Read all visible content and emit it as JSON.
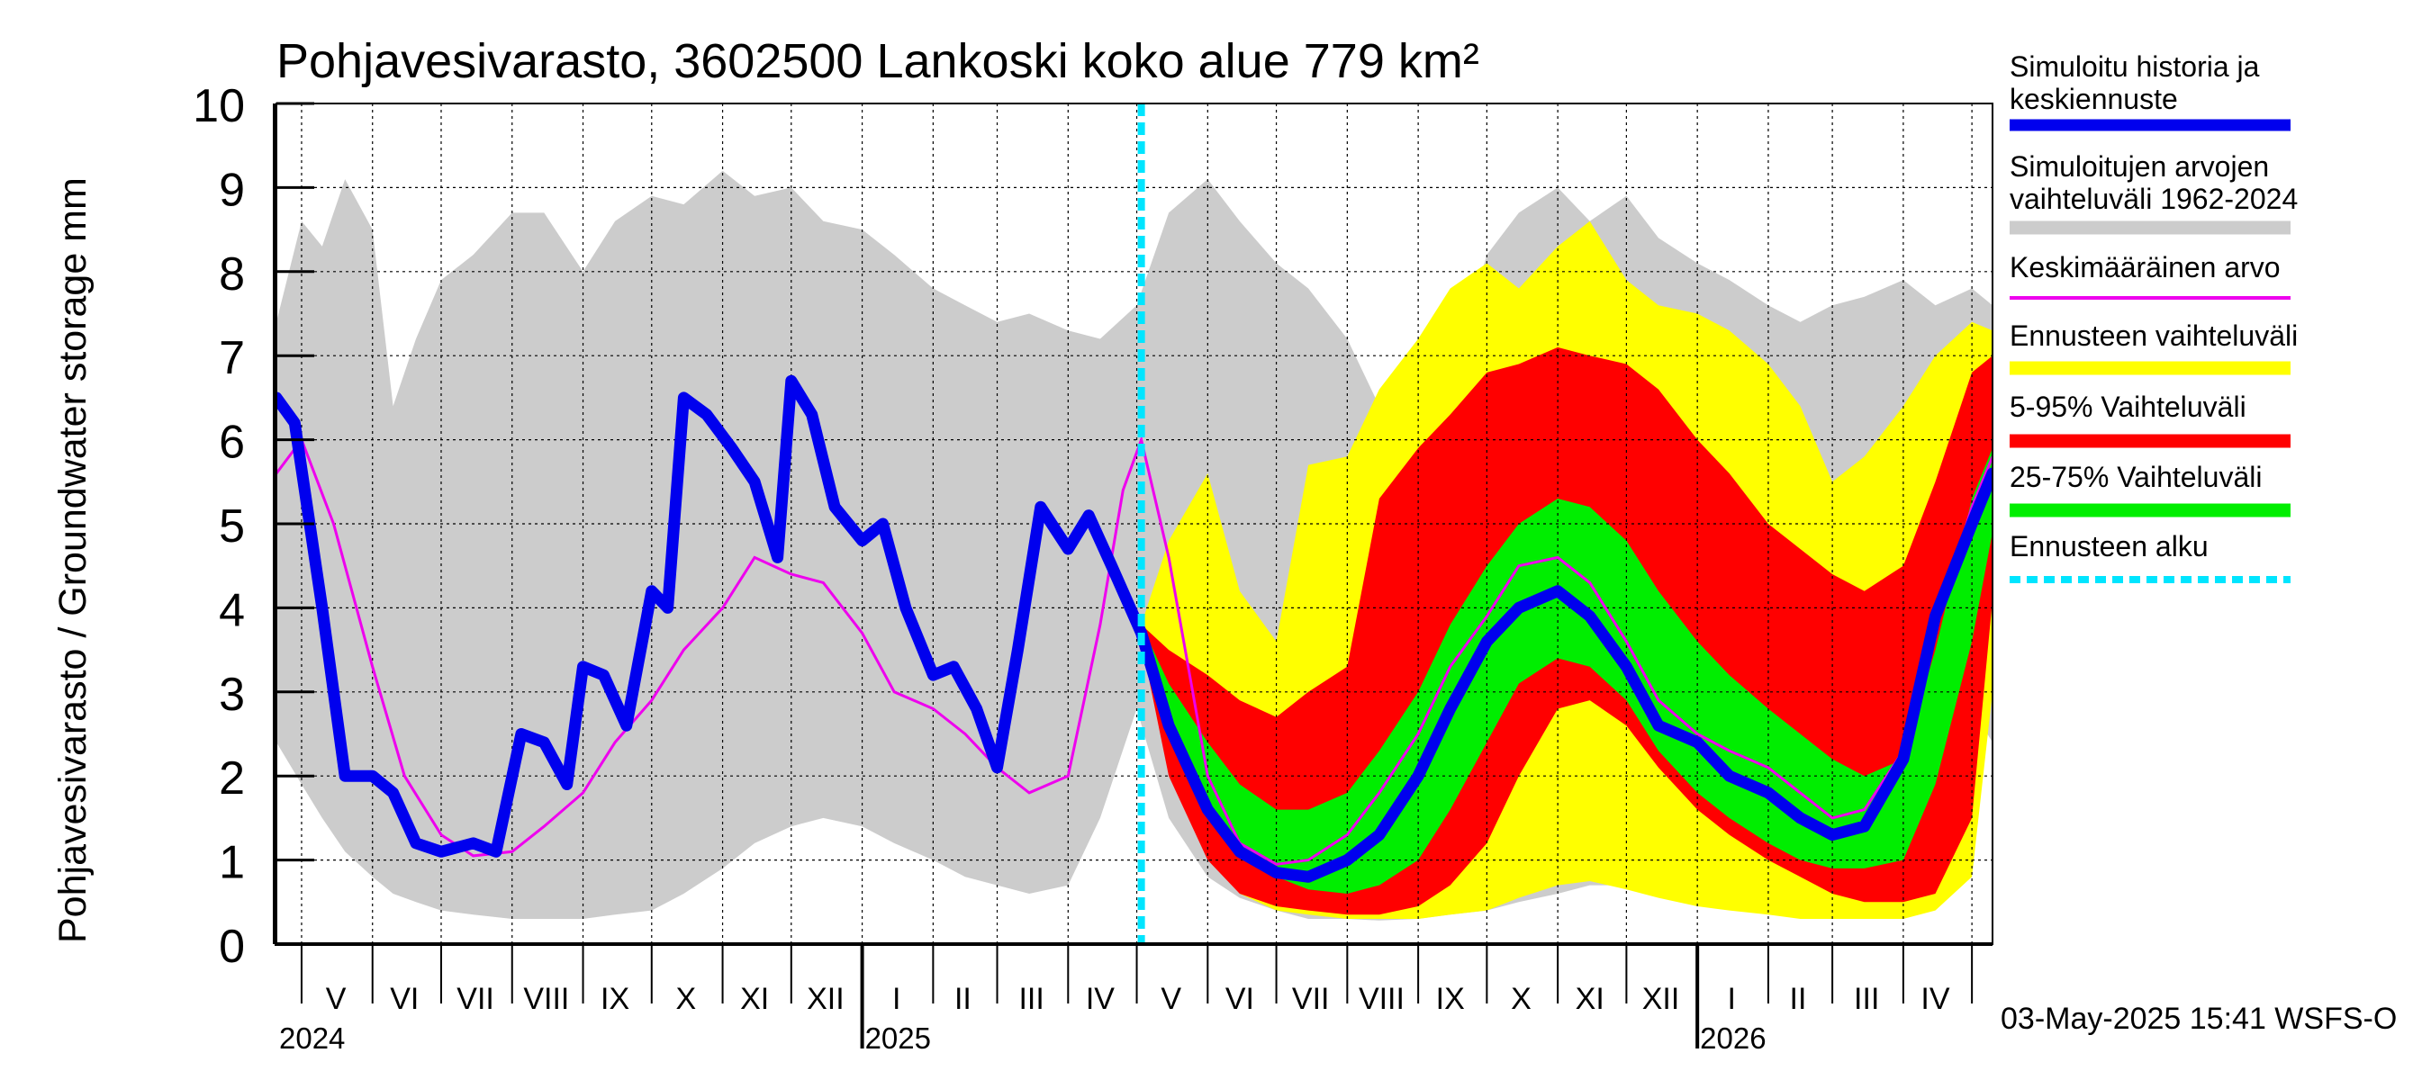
{
  "chart_data": {
    "type": "area",
    "title": "Pohjavesivarasto, 3602500 Lankoski koko alue 779 km²",
    "ylabel": "Pohjavesivarasto / Groundwater storage   mm",
    "ylim": [
      0,
      10
    ],
    "y_ticks": [
      "0",
      "1",
      "2",
      "3",
      "4",
      "5",
      "6",
      "7",
      "8",
      "9",
      "10"
    ],
    "x_range": [
      "2024-04-20",
      "2026-05-10"
    ],
    "grid": true,
    "legend_position": "right",
    "month_labels": [
      {
        "label": "V",
        "date": "2024-05-16"
      },
      {
        "label": "VI",
        "date": "2024-06-15"
      },
      {
        "label": "VII",
        "date": "2024-07-16"
      },
      {
        "label": "VIII",
        "date": "2024-08-16"
      },
      {
        "label": "IX",
        "date": "2024-09-15"
      },
      {
        "label": "X",
        "date": "2024-10-16"
      },
      {
        "label": "XI",
        "date": "2024-11-15"
      },
      {
        "label": "XII",
        "date": "2024-12-16"
      },
      {
        "label": "I",
        "date": "2025-01-16"
      },
      {
        "label": "II",
        "date": "2025-02-14"
      },
      {
        "label": "III",
        "date": "2025-03-16"
      },
      {
        "label": "IV",
        "date": "2025-04-15"
      },
      {
        "label": "V",
        "date": "2025-05-16"
      },
      {
        "label": "VI",
        "date": "2025-06-15"
      },
      {
        "label": "VII",
        "date": "2025-07-16"
      },
      {
        "label": "VIII",
        "date": "2025-08-16"
      },
      {
        "label": "IX",
        "date": "2025-09-15"
      },
      {
        "label": "X",
        "date": "2025-10-16"
      },
      {
        "label": "XI",
        "date": "2025-11-15"
      },
      {
        "label": "XII",
        "date": "2025-12-16"
      },
      {
        "label": "I",
        "date": "2026-01-16"
      },
      {
        "label": "II",
        "date": "2026-02-14"
      },
      {
        "label": "III",
        "date": "2026-03-16"
      },
      {
        "label": "IV",
        "date": "2026-04-15"
      }
    ],
    "year_labels": [
      {
        "label": "2024",
        "date": "2024-04-20"
      },
      {
        "label": "2025",
        "date": "2025-01-01"
      },
      {
        "label": "2026",
        "date": "2026-01-01"
      }
    ],
    "forecast_start": "2025-05-03",
    "footer": "03-May-2025 15:41 WSFS-O",
    "legend": [
      {
        "label": "Simuloitu historia ja keskiennuste",
        "color": "#0000ee",
        "style": "line-thick"
      },
      {
        "label": "Simuloitujen arvojen vaihteluväli 1962-2024",
        "color": "#cccccc",
        "style": "band"
      },
      {
        "label": "Keskimääräinen arvo",
        "color": "#ee00ee",
        "style": "line-thin"
      },
      {
        "label": "Ennusteen vaihteluväli",
        "color": "#ffff00",
        "style": "band"
      },
      {
        "label": "5-95% Vaihteluväli",
        "color": "#ff0000",
        "style": "band"
      },
      {
        "label": "25-75% Vaihteluväli",
        "color": "#00ee00",
        "style": "band"
      },
      {
        "label": "Ennusteen alku",
        "color": "#00e5ff",
        "style": "dashed"
      }
    ],
    "series": [
      {
        "id": "history_range",
        "x": [
          "2024-04-20",
          "2024-05-01",
          "2024-05-10",
          "2024-05-20",
          "2024-06-01",
          "2024-06-10",
          "2024-06-20",
          "2024-07-01",
          "2024-07-15",
          "2024-08-01",
          "2024-08-15",
          "2024-09-01",
          "2024-09-15",
          "2024-10-01",
          "2024-10-15",
          "2024-11-01",
          "2024-11-15",
          "2024-12-01",
          "2024-12-15",
          "2025-01-01",
          "2025-01-15",
          "2025-02-01",
          "2025-02-15",
          "2025-03-01",
          "2025-03-15",
          "2025-04-01",
          "2025-04-15",
          "2025-05-01",
          "2025-05-15",
          "2025-06-01",
          "2025-06-15",
          "2025-07-01",
          "2025-07-15",
          "2025-08-01",
          "2025-08-15",
          "2025-09-01",
          "2025-09-15",
          "2025-10-01",
          "2025-10-15",
          "2025-11-01",
          "2025-11-15",
          "2025-12-01",
          "2025-12-15",
          "2026-01-01",
          "2026-01-15",
          "2026-02-01",
          "2026-02-15",
          "2026-03-01",
          "2026-03-15",
          "2026-04-01",
          "2026-04-15",
          "2026-05-01",
          "2026-05-10"
        ],
        "low": [
          2.4,
          1.9,
          1.5,
          1.1,
          0.8,
          0.6,
          0.5,
          0.4,
          0.35,
          0.3,
          0.3,
          0.3,
          0.35,
          0.4,
          0.6,
          0.9,
          1.2,
          1.4,
          1.5,
          1.4,
          1.2,
          1.0,
          0.8,
          0.7,
          0.6,
          0.7,
          1.5,
          2.8,
          1.5,
          0.8,
          0.55,
          0.4,
          0.3,
          0.3,
          0.28,
          0.3,
          0.35,
          0.4,
          0.5,
          0.6,
          0.7,
          0.7,
          0.6,
          0.5,
          0.45,
          0.4,
          0.35,
          0.35,
          0.35,
          0.4,
          0.8,
          2.8,
          2.4
        ],
        "high": [
          7.4,
          8.6,
          8.3,
          9.1,
          8.5,
          6.4,
          7.2,
          7.9,
          8.2,
          8.7,
          8.7,
          8.0,
          8.6,
          8.9,
          8.8,
          9.2,
          8.9,
          9.0,
          8.6,
          8.5,
          8.2,
          7.8,
          7.6,
          7.4,
          7.5,
          7.3,
          7.2,
          7.6,
          8.7,
          9.1,
          8.6,
          8.1,
          7.8,
          7.2,
          6.4,
          5.8,
          6.7,
          8.2,
          8.7,
          9.0,
          8.6,
          8.9,
          8.4,
          8.1,
          7.9,
          7.6,
          7.4,
          7.6,
          7.7,
          7.9,
          7.6,
          7.8,
          7.6
        ]
      },
      {
        "id": "forecast_range",
        "x": [
          "2025-05-03",
          "2025-05-15",
          "2025-06-01",
          "2025-06-15",
          "2025-07-01",
          "2025-07-15",
          "2025-08-01",
          "2025-08-15",
          "2025-09-01",
          "2025-09-15",
          "2025-10-01",
          "2025-10-15",
          "2025-11-01",
          "2025-11-15",
          "2025-12-01",
          "2025-12-15",
          "2026-01-01",
          "2026-01-15",
          "2026-02-01",
          "2026-02-15",
          "2026-03-01",
          "2026-03-15",
          "2026-04-01",
          "2026-04-15",
          "2026-05-01",
          "2026-05-10"
        ],
        "low": [
          3.6,
          2.2,
          1.1,
          0.6,
          0.4,
          0.35,
          0.3,
          0.3,
          0.3,
          0.35,
          0.4,
          0.55,
          0.7,
          0.75,
          0.65,
          0.55,
          0.45,
          0.4,
          0.35,
          0.3,
          0.3,
          0.3,
          0.3,
          0.4,
          0.8,
          3.0
        ],
        "high": [
          3.8,
          4.8,
          5.6,
          4.2,
          3.6,
          5.7,
          5.8,
          6.6,
          7.2,
          7.8,
          8.1,
          7.8,
          8.3,
          8.6,
          7.9,
          7.6,
          7.5,
          7.3,
          6.9,
          6.4,
          5.5,
          5.8,
          6.4,
          7.0,
          7.4,
          7.3
        ]
      },
      {
        "id": "p5_95",
        "x": [
          "2025-05-03",
          "2025-05-15",
          "2025-06-01",
          "2025-06-15",
          "2025-07-01",
          "2025-07-15",
          "2025-08-01",
          "2025-08-15",
          "2025-09-01",
          "2025-09-15",
          "2025-10-01",
          "2025-10-15",
          "2025-11-01",
          "2025-11-15",
          "2025-12-01",
          "2025-12-15",
          "2026-01-01",
          "2026-01-15",
          "2026-02-01",
          "2026-02-15",
          "2026-03-01",
          "2026-03-15",
          "2026-04-01",
          "2026-04-15",
          "2026-05-01",
          "2026-05-10"
        ],
        "low": [
          3.6,
          2.0,
          1.0,
          0.6,
          0.45,
          0.4,
          0.35,
          0.35,
          0.45,
          0.7,
          1.2,
          2.0,
          2.8,
          2.9,
          2.6,
          2.1,
          1.6,
          1.3,
          1.0,
          0.8,
          0.6,
          0.5,
          0.5,
          0.6,
          1.5,
          4.1
        ],
        "high": [
          3.8,
          3.5,
          3.2,
          2.9,
          2.7,
          3.0,
          3.3,
          5.3,
          5.9,
          6.3,
          6.8,
          6.9,
          7.1,
          7.0,
          6.9,
          6.6,
          6.0,
          5.6,
          5.0,
          4.7,
          4.4,
          4.2,
          4.5,
          5.5,
          6.8,
          7.0
        ]
      },
      {
        "id": "p25_75",
        "x": [
          "2025-05-03",
          "2025-05-15",
          "2025-06-01",
          "2025-06-15",
          "2025-07-01",
          "2025-07-15",
          "2025-08-01",
          "2025-08-15",
          "2025-09-01",
          "2025-09-15",
          "2025-10-01",
          "2025-10-15",
          "2025-11-01",
          "2025-11-15",
          "2025-12-01",
          "2025-12-15",
          "2026-01-01",
          "2026-01-15",
          "2026-02-01",
          "2026-02-15",
          "2026-03-01",
          "2026-03-15",
          "2026-04-01",
          "2026-04-15",
          "2026-05-01",
          "2026-05-10"
        ],
        "low": [
          3.6,
          2.5,
          1.6,
          1.1,
          0.8,
          0.65,
          0.6,
          0.7,
          1.0,
          1.6,
          2.4,
          3.1,
          3.4,
          3.3,
          2.9,
          2.3,
          1.8,
          1.5,
          1.2,
          1.0,
          0.9,
          0.9,
          1.0,
          1.9,
          3.6,
          4.9
        ],
        "high": [
          3.8,
          3.1,
          2.4,
          1.9,
          1.6,
          1.6,
          1.8,
          2.3,
          3.0,
          3.8,
          4.5,
          5.0,
          5.3,
          5.2,
          4.8,
          4.2,
          3.6,
          3.2,
          2.8,
          2.5,
          2.2,
          2.0,
          2.2,
          3.5,
          5.3,
          5.9
        ]
      },
      {
        "id": "mean",
        "x": [
          "2024-04-20",
          "2024-05-01",
          "2024-05-15",
          "2024-06-01",
          "2024-06-15",
          "2024-07-01",
          "2024-07-15",
          "2024-08-01",
          "2024-08-15",
          "2024-09-01",
          "2024-09-15",
          "2024-10-01",
          "2024-10-15",
          "2024-11-01",
          "2024-11-15",
          "2024-12-01",
          "2024-12-15",
          "2025-01-01",
          "2025-01-15",
          "2025-02-01",
          "2025-02-15",
          "2025-03-01",
          "2025-03-15",
          "2025-04-01",
          "2025-04-15",
          "2025-04-25",
          "2025-05-03",
          "2025-05-15",
          "2025-06-01",
          "2025-06-15",
          "2025-07-01",
          "2025-07-15",
          "2025-08-01",
          "2025-08-15",
          "2025-09-01",
          "2025-09-15",
          "2025-10-01",
          "2025-10-15",
          "2025-11-01",
          "2025-11-15",
          "2025-12-01",
          "2025-12-15",
          "2026-01-01",
          "2026-01-15",
          "2026-02-01",
          "2026-02-15",
          "2026-03-01",
          "2026-03-15",
          "2026-04-01",
          "2026-04-15",
          "2026-05-01",
          "2026-05-10"
        ],
        "values": [
          5.6,
          6.0,
          5.0,
          3.3,
          2.0,
          1.3,
          1.05,
          1.1,
          1.4,
          1.8,
          2.4,
          2.9,
          3.5,
          4.0,
          4.6,
          4.4,
          4.3,
          3.7,
          3.0,
          2.8,
          2.5,
          2.1,
          1.8,
          2.0,
          3.8,
          5.4,
          6.0,
          4.6,
          2.0,
          1.2,
          0.95,
          1.0,
          1.3,
          1.8,
          2.5,
          3.3,
          3.9,
          4.5,
          4.6,
          4.3,
          3.6,
          2.9,
          2.5,
          2.3,
          2.1,
          1.8,
          1.5,
          1.6,
          2.3,
          3.8,
          5.2,
          5.8
        ]
      },
      {
        "id": "simulated",
        "x": [
          "2024-04-20",
          "2024-04-28",
          "2024-05-10",
          "2024-05-20",
          "2024-06-01",
          "2024-06-10",
          "2024-06-20",
          "2024-07-01",
          "2024-07-15",
          "2024-07-25",
          "2024-08-05",
          "2024-08-15",
          "2024-08-25",
          "2024-09-01",
          "2024-09-10",
          "2024-09-20",
          "2024-10-01",
          "2024-10-08",
          "2024-10-15",
          "2024-10-25",
          "2024-11-05",
          "2024-11-15",
          "2024-11-25",
          "2024-12-01",
          "2024-12-10",
          "2024-12-20",
          "2025-01-01",
          "2025-01-10",
          "2025-01-20",
          "2025-02-01",
          "2025-02-10",
          "2025-02-20",
          "2025-03-01",
          "2025-03-10",
          "2025-03-20",
          "2025-04-01",
          "2025-04-10",
          "2025-04-20",
          "2025-05-03",
          "2025-05-15",
          "2025-06-01",
          "2025-06-15",
          "2025-07-01",
          "2025-07-15",
          "2025-08-01",
          "2025-08-15",
          "2025-09-01",
          "2025-09-15",
          "2025-10-01",
          "2025-10-15",
          "2025-11-01",
          "2025-11-15",
          "2025-12-01",
          "2025-12-15",
          "2026-01-01",
          "2026-01-15",
          "2026-02-01",
          "2026-02-15",
          "2026-03-01",
          "2026-03-15",
          "2026-04-01",
          "2026-04-15",
          "2026-05-01",
          "2026-05-10"
        ],
        "values": [
          6.5,
          6.2,
          4.0,
          2.0,
          2.0,
          1.8,
          1.2,
          1.1,
          1.2,
          1.1,
          2.5,
          2.4,
          1.9,
          3.3,
          3.2,
          2.6,
          4.2,
          4.0,
          6.5,
          6.3,
          5.9,
          5.5,
          4.6,
          6.7,
          6.3,
          5.2,
          4.8,
          5.0,
          4.0,
          3.2,
          3.3,
          2.8,
          2.1,
          3.5,
          5.2,
          4.7,
          5.1,
          4.5,
          3.7,
          2.6,
          1.6,
          1.1,
          0.85,
          0.8,
          1.0,
          1.3,
          2.0,
          2.8,
          3.6,
          4.0,
          4.2,
          3.9,
          3.3,
          2.6,
          2.4,
          2.0,
          1.8,
          1.5,
          1.3,
          1.4,
          2.2,
          3.9,
          5.0,
          5.6
        ]
      }
    ]
  }
}
